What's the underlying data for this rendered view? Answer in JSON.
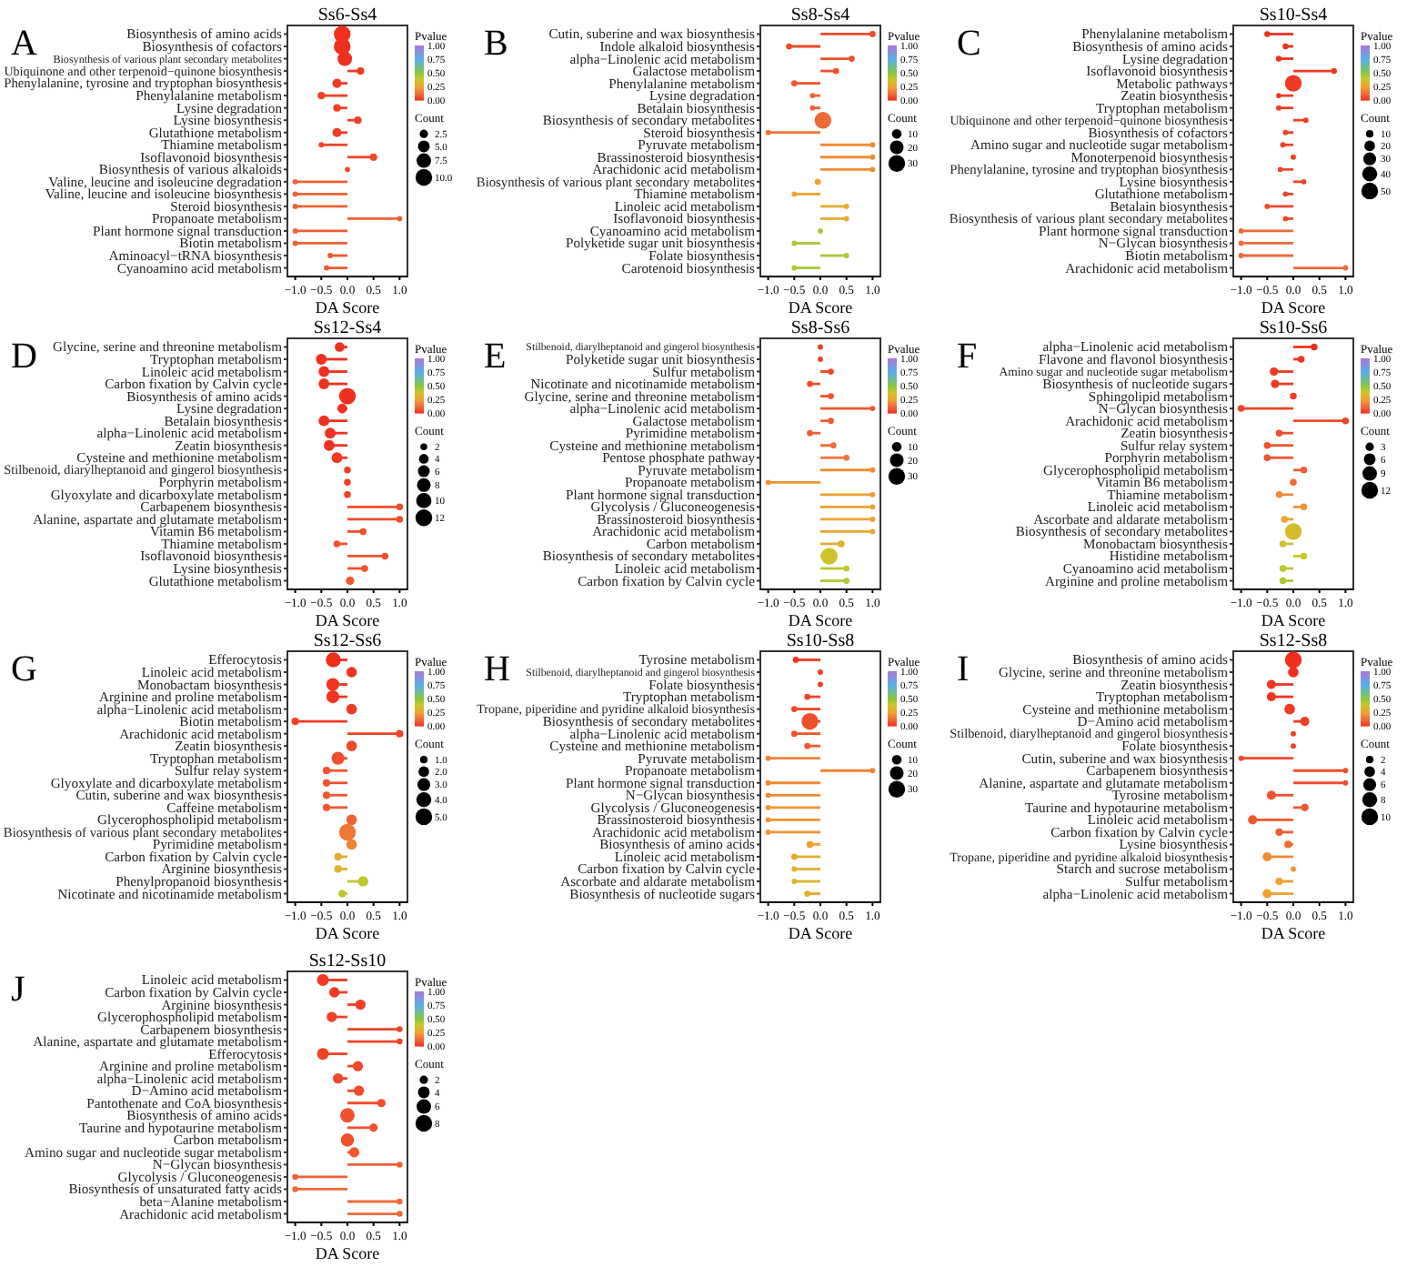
{
  "chart_data": [
    {
      "type": "lollipop",
      "orientation": "horizontal",
      "title": "Ss6-Ss4",
      "xlabel": "DA Score",
      "annotations": [
        "A"
      ],
      "clabel": "Pvalue",
      "legend_title": "Count",
      "clim": [
        0,
        1
      ],
      "cticks": [
        {
          "value": 0,
          "label": "0.00"
        },
        {
          "value": 0.25,
          "label": "0.25"
        },
        {
          "value": 0.5,
          "label": "0.50"
        },
        {
          "value": 0.75,
          "label": "0.75"
        },
        {
          "value": 1,
          "label": "1.00"
        }
      ],
      "xlim": [
        -1.15,
        1.15
      ],
      "xticks": [
        {
          "value": -1,
          "label": "−1.0"
        },
        {
          "value": -0.5,
          "label": "−0.5"
        },
        {
          "value": 0,
          "label": "0.0"
        },
        {
          "value": 0.5,
          "label": "0.5"
        },
        {
          "value": 1,
          "label": "1.0"
        }
      ],
      "size_legend": [
        {
          "value": 2.5,
          "label": "2.5"
        },
        {
          "value": 5,
          "label": "5.0"
        },
        {
          "value": 7.5,
          "label": "7.5"
        },
        {
          "value": 10,
          "label": "10.0"
        }
      ],
      "categories": [
        "Biosynthesis of amino acids",
        "Biosynthesis of cofactors",
        "Biosynthesis of various plant secondary metabolites",
        "Ubiquinone and other terpenoid−quinone biosynthesis",
        "Phenylalanine, tyrosine and tryptophan biosynthesis",
        "Phenylalanine metabolism",
        "Lysine degradation",
        "Lysine biosynthesis",
        "Glutathione metabolism",
        "Thiamine metabolism",
        "Isoflavonoid biosynthesis",
        "Biosynthesis of various alkaloids",
        "Valine, leucine and isoleucine degradation",
        "Valine, leucine and isoleucine biosynthesis",
        "Steroid biosynthesis",
        "Propanoate metabolism",
        "Plant hormone signal transduction",
        "Biotin metabolism",
        "Aminoacyl−tRNA biosynthesis",
        "Cyanoamino acid metabolism"
      ],
      "values": [
        -0.1,
        -0.1,
        -0.05,
        0.25,
        -0.2,
        -0.5,
        -0.2,
        0.2,
        -0.2,
        -0.5,
        0.5,
        0,
        -1,
        -1,
        -1,
        1,
        -1,
        -1,
        -0.33,
        -0.4
      ],
      "cvalues": [
        0,
        0,
        0,
        0.02,
        0.02,
        0.03,
        0.03,
        0.03,
        0.03,
        0.04,
        0.05,
        0.05,
        0.1,
        0.1,
        0.1,
        0.1,
        0.1,
        0.1,
        0.08,
        0.08
      ],
      "sizes": [
        10,
        10,
        7.5,
        2,
        3,
        2,
        2,
        2,
        3,
        1,
        2,
        1,
        1,
        1,
        1,
        1,
        1,
        1,
        1,
        1
      ]
    },
    {
      "type": "lollipop",
      "orientation": "horizontal",
      "title": "Ss8-Ss4",
      "xlabel": "DA Score",
      "annotations": [
        "B"
      ],
      "clabel": "Pvalue",
      "legend_title": "Count",
      "clim": [
        0,
        1
      ],
      "cticks": [
        {
          "value": 0,
          "label": "0.00"
        },
        {
          "value": 0.25,
          "label": "0.25"
        },
        {
          "value": 0.5,
          "label": "0.50"
        },
        {
          "value": 0.75,
          "label": "0.75"
        },
        {
          "value": 1,
          "label": "1.00"
        }
      ],
      "xlim": [
        -1.15,
        1.15
      ],
      "xticks": [
        {
          "value": -1,
          "label": "−1.0"
        },
        {
          "value": -0.5,
          "label": "−0.5"
        },
        {
          "value": 0,
          "label": "0.0"
        },
        {
          "value": 0.5,
          "label": "0.5"
        },
        {
          "value": 1,
          "label": "1.0"
        }
      ],
      "size_legend": [
        10,
        20,
        30
      ],
      "categories": [
        "Cutin, suberine and wax biosynthesis",
        "Indole alkaloid biosynthesis",
        "alpha−Linolenic acid metabolism",
        "Galactose metabolism",
        "Phenylalanine metabolism",
        "Lysine degradation",
        "Betalain biosynthesis",
        "Biosynthesis of secondary metabolites",
        "Steroid biosynthesis",
        "Pyruvate metabolism",
        "Brassinosteroid biosynthesis",
        "Arachidonic acid metabolism",
        "Biosynthesis of various plant secondary metabolites",
        "Thiamine metabolism",
        "Linoleic acid metabolism",
        "Isoflavonoid biosynthesis",
        "Cyanoamino acid metabolism",
        "Polyketide sugar unit biosynthesis",
        "Folate biosynthesis",
        "Carotenoid biosynthesis"
      ],
      "values": [
        1,
        -0.6,
        0.6,
        0.3,
        -0.5,
        -0.15,
        -0.15,
        0.05,
        -1,
        1,
        1,
        1,
        -0.05,
        -0.5,
        0.5,
        0.5,
        0,
        -0.5,
        0.5,
        -0.5
      ],
      "cvalues": [
        0.05,
        0.05,
        0.06,
        0.07,
        0.08,
        0.1,
        0.1,
        0.12,
        0.15,
        0.2,
        0.2,
        0.2,
        0.25,
        0.27,
        0.3,
        0.3,
        0.45,
        0.45,
        0.45,
        0.45
      ],
      "sizes": [
        4,
        4,
        4,
        4,
        4,
        3,
        3,
        30,
        3,
        3,
        3,
        3,
        4,
        3,
        3,
        3,
        3,
        3,
        3,
        3
      ]
    },
    {
      "type": "lollipop",
      "orientation": "horizontal",
      "title": "Ss10-Ss4",
      "xlabel": "DA Score",
      "annotations": [
        "C"
      ],
      "clabel": "Pvalue",
      "legend_title": "Count",
      "clim": [
        0,
        1
      ],
      "cticks": [
        {
          "value": 0,
          "label": "0.00"
        },
        {
          "value": 0.25,
          "label": "0.25"
        },
        {
          "value": 0.5,
          "label": "0.50"
        },
        {
          "value": 0.75,
          "label": "0.75"
        },
        {
          "value": 1,
          "label": "1.00"
        }
      ],
      "xlim": [
        -1.15,
        1.15
      ],
      "xticks": [
        {
          "value": -1,
          "label": "−1.0"
        },
        {
          "value": -0.5,
          "label": "−0.5"
        },
        {
          "value": 0,
          "label": "0.0"
        },
        {
          "value": 0.5,
          "label": "0.5"
        },
        {
          "value": 1,
          "label": "1.0"
        }
      ],
      "size_legend": [
        10,
        20,
        30,
        40,
        50
      ],
      "categories": [
        "Phenylalanine metabolism",
        "Biosynthesis of amino acids",
        "Lysine degradation",
        "Isoflavonoid biosynthesis",
        "Metabolic pathways",
        "Zeatin biosynthesis",
        "Tryptophan metabolism",
        "Ubiquinone and other terpenoid−quinone biosynthesis",
        "Biosynthesis of cofactors",
        "Amino sugar and nucleotide sugar metabolism",
        "Monoterpenoid biosynthesis",
        "Phenylalanine, tyrosine and tryptophan biosynthesis",
        "Lysine biosynthesis",
        "Glutathione metabolism",
        "Betalain biosynthesis",
        "Biosynthesis of various plant secondary metabolites",
        "Plant hormone signal transduction",
        "N−Glycan biosynthesis",
        "Biotin metabolism",
        "Arachidonic acid metabolism"
      ],
      "values": [
        -0.5,
        -0.15,
        -0.28,
        0.78,
        0,
        -0.28,
        -0.28,
        0.24,
        -0.15,
        -0.2,
        0,
        -0.25,
        0.2,
        -0.15,
        -0.5,
        -0.15,
        -1,
        -1,
        -1,
        1
      ],
      "cvalues": [
        0,
        0,
        0,
        0.02,
        0.02,
        0.02,
        0.03,
        0.03,
        0.03,
        0.03,
        0.03,
        0.04,
        0.04,
        0.04,
        0.05,
        0.05,
        0.12,
        0.12,
        0.12,
        0.12
      ],
      "sizes": [
        6,
        6,
        6,
        6,
        50,
        5,
        5,
        5,
        5,
        5,
        5,
        5,
        5,
        5,
        5,
        5,
        5,
        5,
        5,
        5
      ]
    },
    {
      "type": "lollipop",
      "orientation": "horizontal",
      "title": "Ss12-Ss4",
      "xlabel": "DA Score",
      "annotations": [
        "D"
      ],
      "clabel": "Pvalue",
      "legend_title": "Count",
      "clim": [
        0,
        1
      ],
      "cticks": [
        {
          "value": 0,
          "label": "0.00"
        },
        {
          "value": 0.25,
          "label": "0.25"
        },
        {
          "value": 0.5,
          "label": "0.50"
        },
        {
          "value": 0.75,
          "label": "0.75"
        },
        {
          "value": 1,
          "label": "1.00"
        }
      ],
      "xlim": [
        -1.15,
        1.15
      ],
      "xticks": [
        {
          "value": -1,
          "label": "−1.0"
        },
        {
          "value": -0.5,
          "label": "−0.5"
        },
        {
          "value": 0,
          "label": "0.0"
        },
        {
          "value": 0.5,
          "label": "0.5"
        },
        {
          "value": 1,
          "label": "1.0"
        }
      ],
      "size_legend": [
        2,
        4,
        6,
        8,
        10,
        12
      ],
      "categories": [
        "Glycine, serine and threonine metabolism",
        "Tryptophan metabolism",
        "Linoleic acid metabolism",
        "Carbon fixation by Calvin cycle",
        "Biosynthesis of amino acids",
        "Lysine degradation",
        "Betalain biosynthesis",
        "alpha−Linolenic acid metabolism",
        "Zeatin biosynthesis",
        "Cysteine and methionine metabolism",
        "Stilbenoid, diarylheptanoid and gingerol biosynthesis",
        "Porphyrin metabolism",
        "Glyoxylate and dicarboxylate metabolism",
        "Carbapenem biosynthesis",
        "Alanine, aspartate and glutamate metabolism",
        "Vitamin B6 metabolism",
        "Thiamine metabolism",
        "Isoflavonoid biosynthesis",
        "Lysine biosynthesis",
        "Glutathione metabolism"
      ],
      "values": [
        -0.15,
        -0.5,
        -0.45,
        -0.45,
        0,
        -0.1,
        -0.45,
        -0.33,
        -0.35,
        -0.2,
        0,
        0,
        0,
        1,
        1,
        0.3,
        -0.2,
        0.72,
        0.33,
        0.05
      ],
      "cvalues": [
        0,
        0,
        0,
        0,
        0,
        0,
        0,
        0,
        0,
        0.02,
        0.03,
        0.03,
        0.03,
        0.06,
        0.06,
        0.06,
        0.07,
        0.07,
        0.07,
        0.08
      ],
      "sizes": [
        4,
        5,
        5,
        5,
        12,
        4,
        5,
        5,
        5,
        5,
        2,
        2,
        2,
        2,
        2,
        2,
        2,
        2,
        2,
        3
      ]
    },
    {
      "type": "lollipop",
      "orientation": "horizontal",
      "title": "Ss8-Ss6",
      "xlabel": "DA Score",
      "annotations": [
        "E"
      ],
      "clabel": "Pvalue",
      "legend_title": "Count",
      "clim": [
        0,
        1
      ],
      "cticks": [
        {
          "value": 0,
          "label": "0.00"
        },
        {
          "value": 0.25,
          "label": "0.25"
        },
        {
          "value": 0.5,
          "label": "0.50"
        },
        {
          "value": 0.75,
          "label": "0.75"
        },
        {
          "value": 1,
          "label": "1.00"
        }
      ],
      "xlim": [
        -1.15,
        1.15
      ],
      "xticks": [
        {
          "value": -1,
          "label": "−1.0"
        },
        {
          "value": -0.5,
          "label": "−0.5"
        },
        {
          "value": 0,
          "label": "0.0"
        },
        {
          "value": 0.5,
          "label": "0.5"
        },
        {
          "value": 1,
          "label": "1.0"
        }
      ],
      "size_legend": [
        10,
        20,
        30
      ],
      "categories": [
        "Stilbenoid, diarylheptanoid and gingerol biosynthesis",
        "Polyketide sugar unit biosynthesis",
        "Sulfur metabolism",
        "Nicotinate and nicotinamide metabolism",
        "Glycine, serine and threonine metabolism",
        "alpha−Linolenic acid metabolism",
        "Galactose metabolism",
        "Pyrimidine metabolism",
        "Cysteine and methionine metabolism",
        "Pentose phosphate pathway",
        "Pyruvate metabolism",
        "Propanoate metabolism",
        "Plant hormone signal transduction",
        "Glycolysis / Gluconeogenesis",
        "Brassinosteroid biosynthesis",
        "Arachidonic acid metabolism",
        "Carbon metabolism",
        "Biosynthesis of secondary metabolites",
        "Linoleic acid metabolism",
        "Carbon fixation by Calvin cycle"
      ],
      "values": [
        0,
        0,
        0.2,
        -0.2,
        0.2,
        1,
        0.2,
        -0.2,
        0.25,
        0.5,
        1,
        -1,
        1,
        1,
        1,
        1,
        0.4,
        0.17,
        0.5,
        0.5
      ],
      "cvalues": [
        0.02,
        0.03,
        0.05,
        0.06,
        0.07,
        0.08,
        0.09,
        0.1,
        0.12,
        0.15,
        0.2,
        0.22,
        0.24,
        0.25,
        0.26,
        0.27,
        0.3,
        0.38,
        0.42,
        0.44
      ],
      "sizes": [
        3,
        3,
        4,
        4,
        4,
        3,
        4,
        4,
        4,
        4,
        3,
        3,
        3,
        3,
        3,
        3,
        5,
        30,
        4,
        4
      ]
    },
    {
      "type": "lollipop",
      "orientation": "horizontal",
      "title": "Ss10-Ss6",
      "xlabel": "DA Score",
      "annotations": [
        "F"
      ],
      "clabel": "Pvalue",
      "legend_title": "Count",
      "clim": [
        0,
        1
      ],
      "cticks": [
        {
          "value": 0,
          "label": "0.00"
        },
        {
          "value": 0.25,
          "label": "0.25"
        },
        {
          "value": 0.5,
          "label": "0.50"
        },
        {
          "value": 0.75,
          "label": "0.75"
        },
        {
          "value": 1,
          "label": "1.00"
        }
      ],
      "xlim": [
        -1.15,
        1.15
      ],
      "xticks": [
        {
          "value": -1,
          "label": "−1.0"
        },
        {
          "value": -0.5,
          "label": "−0.5"
        },
        {
          "value": 0,
          "label": "0.0"
        },
        {
          "value": 0.5,
          "label": "0.5"
        },
        {
          "value": 1,
          "label": "1.0"
        }
      ],
      "size_legend": [
        3,
        6,
        9,
        12
      ],
      "categories": [
        "alpha−Linolenic acid metabolism",
        "Flavone and flavonol biosynthesis",
        "Amino sugar and nucleotide sugar metabolism",
        "Biosynthesis of nucleotide sugars",
        "Sphingolipid metabolism",
        "N−Glycan biosynthesis",
        "Arachidonic acid metabolism",
        "Zeatin biosynthesis",
        "Sulfur relay system",
        "Porphyrin metabolism",
        "Glycerophospholipid metabolism",
        "Vitamin B6 metabolism",
        "Thiamine metabolism",
        "Linoleic acid metabolism",
        "Ascorbate and aldarate metabolism",
        "Biosynthesis of secondary metabolites",
        "Monobactam biosynthesis",
        "Histidine metabolism",
        "Cyanoamino acid metabolism",
        "Arginine and proline metabolism"
      ],
      "values": [
        0.4,
        0.15,
        -0.37,
        -0.35,
        0,
        -1,
        1,
        -0.27,
        -0.5,
        -0.5,
        0.2,
        0,
        -0.27,
        0.2,
        -0.17,
        0,
        -0.2,
        0.2,
        -0.2,
        -0.2
      ],
      "cvalues": [
        0,
        0.01,
        0.02,
        0.02,
        0.03,
        0.04,
        0.05,
        0.06,
        0.07,
        0.08,
        0.1,
        0.12,
        0.2,
        0.22,
        0.25,
        0.35,
        0.38,
        0.4,
        0.42,
        0.44
      ],
      "sizes": [
        2,
        2,
        3,
        3,
        2,
        2,
        2,
        2,
        2,
        2,
        2,
        2,
        2,
        2,
        2,
        12,
        2,
        2,
        2,
        2
      ]
    },
    {
      "type": "lollipop",
      "orientation": "horizontal",
      "title": "Ss12-Ss6",
      "xlabel": "DA Score",
      "annotations": [
        "G"
      ],
      "clabel": "Pvalue",
      "legend_title": "Count",
      "clim": [
        0,
        1
      ],
      "cticks": [
        {
          "value": 0,
          "label": "0.00"
        },
        {
          "value": 0.25,
          "label": "0.25"
        },
        {
          "value": 0.5,
          "label": "0.50"
        },
        {
          "value": 0.75,
          "label": "0.75"
        },
        {
          "value": 1,
          "label": "1.00"
        }
      ],
      "xlim": [
        -1.15,
        1.15
      ],
      "xticks": [
        {
          "value": -1,
          "label": "−1.0"
        },
        {
          "value": -0.5,
          "label": "−0.5"
        },
        {
          "value": 0,
          "label": "0.0"
        },
        {
          "value": 0.5,
          "label": "0.5"
        },
        {
          "value": 1,
          "label": "1.0"
        }
      ],
      "size_legend": [
        {
          "value": 1,
          "label": "1.0"
        },
        {
          "value": 2,
          "label": "2.0"
        },
        {
          "value": 3,
          "label": "3.0"
        },
        {
          "value": 4,
          "label": "4.0"
        },
        {
          "value": 5,
          "label": "5.0"
        }
      ],
      "categories": [
        "Efferocytosis",
        "Linoleic acid metabolism",
        "Monobactam biosynthesis",
        "Arginine and proline metabolism",
        "alpha−Linolenic acid metabolism",
        "Biotin metabolism",
        "Arachidonic acid metabolism",
        "Zeatin biosynthesis",
        "Tryptophan metabolism",
        "Sulfur relay system",
        "Glyoxylate and dicarboxylate metabolism",
        "Cutin, suberine and wax biosynthesis",
        "Caffeine metabolism",
        "Glycerophospholipid metabolism",
        "Biosynthesis of various plant secondary metabolites",
        "Pyrimidine metabolism",
        "Carbon fixation by Calvin cycle",
        "Arginine biosynthesis",
        "Phenylpropanoid biosynthesis",
        "Nicotinate and nicotinamide metabolism"
      ],
      "values": [
        -0.27,
        0.08,
        -0.28,
        -0.28,
        0.08,
        -1,
        1,
        0.08,
        -0.18,
        -0.4,
        -0.4,
        -0.4,
        -0.4,
        0.08,
        0,
        0.08,
        -0.18,
        -0.18,
        0.3,
        -0.1
      ],
      "cvalues": [
        0,
        0,
        0.01,
        0.01,
        0.02,
        0.03,
        0.04,
        0.05,
        0.06,
        0.07,
        0.07,
        0.08,
        0.08,
        0.1,
        0.15,
        0.18,
        0.3,
        0.33,
        0.42,
        0.42
      ],
      "sizes": [
        4,
        2,
        3,
        3,
        2,
        1,
        1,
        2,
        3,
        1,
        1,
        1,
        1,
        2,
        5,
        2,
        1,
        1,
        2,
        1
      ]
    },
    {
      "type": "lollipop",
      "orientation": "horizontal",
      "title": "Ss10-Ss8",
      "xlabel": "DA Score",
      "annotations": [
        "H"
      ],
      "clabel": "Pvalue",
      "legend_title": "Count",
      "clim": [
        0,
        1
      ],
      "cticks": [
        {
          "value": 0,
          "label": "0.00"
        },
        {
          "value": 0.25,
          "label": "0.25"
        },
        {
          "value": 0.5,
          "label": "0.50"
        },
        {
          "value": 0.75,
          "label": "0.75"
        },
        {
          "value": 1,
          "label": "1.00"
        }
      ],
      "xlim": [
        -1.15,
        1.15
      ],
      "xticks": [
        {
          "value": -1,
          "label": "−1.0"
        },
        {
          "value": -0.5,
          "label": "−0.5"
        },
        {
          "value": 0,
          "label": "0.0"
        },
        {
          "value": 0.5,
          "label": "0.5"
        },
        {
          "value": 1,
          "label": "1.0"
        }
      ],
      "size_legend": [
        10,
        20,
        30
      ],
      "categories": [
        "Tyrosine metabolism",
        "Stilbenoid, diarylheptanoid and gingerol biosynthesis",
        "Folate biosynthesis",
        "Tryptophan metabolism",
        "Tropane, piperidine and pyridine alkaloid biosynthesis",
        "Biosynthesis of secondary metabolites",
        "alpha−Linolenic acid metabolism",
        "Cysteine and methionine metabolism",
        "Pyruvate metabolism",
        "Propanoate metabolism",
        "Plant hormone signal transduction",
        "N−Glycan biosynthesis",
        "Glycolysis / Gluconeogenesis",
        "Brassinosteroid biosynthesis",
        "Arachidonic acid metabolism",
        "Biosynthesis of amino acids",
        "Linoleic acid metabolism",
        "Carbon fixation by Calvin cycle",
        "Ascorbate and aldarate metabolism",
        "Biosynthesis of nucleotide sugars"
      ],
      "values": [
        -0.47,
        0,
        0,
        -0.25,
        -0.5,
        -0.2,
        -0.5,
        -0.25,
        -1,
        1,
        -1,
        -1,
        -1,
        -1,
        -1,
        -0.2,
        -0.5,
        -0.5,
        -0.5,
        -0.25
      ],
      "cvalues": [
        0.02,
        0.03,
        0.03,
        0.04,
        0.05,
        0.06,
        0.07,
        0.08,
        0.18,
        0.18,
        0.2,
        0.2,
        0.22,
        0.22,
        0.22,
        0.25,
        0.3,
        0.32,
        0.33,
        0.3
      ],
      "sizes": [
        4,
        3,
        3,
        4,
        4,
        30,
        4,
        4,
        3,
        3,
        3,
        3,
        3,
        3,
        3,
        5,
        4,
        3,
        3,
        4
      ]
    },
    {
      "type": "lollipop",
      "orientation": "horizontal",
      "title": "Ss12-Ss8",
      "xlabel": "DA Score",
      "annotations": [
        "I"
      ],
      "clabel": "Pvalue",
      "legend_title": "Count",
      "clim": [
        0,
        1
      ],
      "cticks": [
        {
          "value": 0,
          "label": "0.00"
        },
        {
          "value": 0.25,
          "label": "0.25"
        },
        {
          "value": 0.5,
          "label": "0.50"
        },
        {
          "value": 0.75,
          "label": "0.75"
        },
        {
          "value": 1,
          "label": "1.00"
        }
      ],
      "xlim": [
        -1.15,
        1.15
      ],
      "xticks": [
        {
          "value": -1,
          "label": "−1.0"
        },
        {
          "value": -0.5,
          "label": "−0.5"
        },
        {
          "value": 0,
          "label": "0.0"
        },
        {
          "value": 0.5,
          "label": "0.5"
        },
        {
          "value": 1,
          "label": "1.0"
        }
      ],
      "size_legend": [
        2,
        4,
        6,
        8,
        10
      ],
      "categories": [
        "Biosynthesis of amino acids",
        "Glycine, serine and threonine metabolism",
        "Zeatin biosynthesis",
        "Tryptophan metabolism",
        "Cysteine and methionine metabolism",
        "D−Amino acid metabolism",
        "Stilbenoid, diarylheptanoid and gingerol biosynthesis",
        "Folate biosynthesis",
        "Cutin, suberine and wax biosynthesis",
        "Carbapenem biosynthesis",
        "Alanine, aspartate and glutamate metabolism",
        "Tyrosine metabolism",
        "Taurine and hypotaurine metabolism",
        "Linoleic acid metabolism",
        "Carbon fixation by Calvin cycle",
        "Lysine biosynthesis",
        "Tropane, piperidine and pyridine alkaloid biosynthesis",
        "Starch and sucrose metabolism",
        "Sulfur metabolism",
        "alpha−Linolenic acid metabolism"
      ],
      "values": [
        0,
        0,
        -0.42,
        -0.42,
        -0.07,
        0.22,
        0,
        0,
        -1,
        1,
        1,
        -0.42,
        0.22,
        -0.78,
        -0.27,
        -0.1,
        -0.5,
        0,
        -0.27,
        -0.5
      ],
      "cvalues": [
        0,
        0,
        0.01,
        0.01,
        0.02,
        0.03,
        0.04,
        0.04,
        0.05,
        0.06,
        0.06,
        0.07,
        0.08,
        0.08,
        0.1,
        0.12,
        0.2,
        0.22,
        0.25,
        0.25
      ],
      "sizes": [
        10,
        4,
        3,
        3,
        4,
        3,
        1,
        1,
        1,
        1,
        1,
        3,
        2,
        3,
        2,
        2,
        3,
        1,
        2,
        3
      ]
    },
    {
      "type": "lollipop",
      "orientation": "horizontal",
      "title": "Ss12-Ss10",
      "xlabel": "DA Score",
      "annotations": [
        "J"
      ],
      "clabel": "Pvalue",
      "legend_title": "Count",
      "clim": [
        0,
        1
      ],
      "cticks": [
        {
          "value": 0,
          "label": "0.00"
        },
        {
          "value": 0.25,
          "label": "0.25"
        },
        {
          "value": 0.5,
          "label": "0.50"
        },
        {
          "value": 0.75,
          "label": "0.75"
        },
        {
          "value": 1,
          "label": "1.00"
        }
      ],
      "xlim": [
        -1.15,
        1.15
      ],
      "xticks": [
        {
          "value": -1,
          "label": "−1.0"
        },
        {
          "value": -0.5,
          "label": "−0.5"
        },
        {
          "value": 0,
          "label": "0.0"
        },
        {
          "value": 0.5,
          "label": "0.5"
        },
        {
          "value": 1,
          "label": "1.0"
        }
      ],
      "size_legend": [
        2,
        4,
        6,
        8
      ],
      "categories": [
        "Linoleic acid metabolism",
        "Carbon fixation by Calvin cycle",
        "Arginine biosynthesis",
        "Glycerophospholipid metabolism",
        "Carbapenem biosynthesis",
        "Alanine, aspartate and glutamate metabolism",
        "Efferocytosis",
        "Arginine and proline metabolism",
        "alpha−Linolenic acid metabolism",
        "D−Amino acid metabolism",
        "Pantothenate and CoA biosynthesis",
        "Biosynthesis of amino acids",
        "Taurine and hypotaurine metabolism",
        "Carbon metabolism",
        "Amino sugar and nucleotide sugar metabolism",
        "N−Glycan biosynthesis",
        "Glycolysis / Gluconeogenesis",
        "Biosynthesis of unsaturated fatty acids",
        "beta−Alanine metabolism",
        "Arachidonic acid metabolism"
      ],
      "values": [
        -0.47,
        -0.25,
        0.25,
        -0.3,
        1,
        1,
        -0.47,
        0.2,
        -0.18,
        0.22,
        0.65,
        0,
        0.5,
        0,
        0.13,
        1,
        -1,
        -1,
        1,
        1
      ],
      "cvalues": [
        0.02,
        0.02,
        0.03,
        0.03,
        0.04,
        0.04,
        0.04,
        0.05,
        0.05,
        0.05,
        0.06,
        0.07,
        0.07,
        0.07,
        0.08,
        0.1,
        0.1,
        0.12,
        0.12,
        0.12
      ],
      "sizes": [
        4,
        3,
        3,
        3,
        1,
        1,
        4,
        3,
        3,
        3,
        2,
        6,
        2,
        5,
        3,
        1,
        1,
        1,
        1,
        1
      ]
    }
  ]
}
